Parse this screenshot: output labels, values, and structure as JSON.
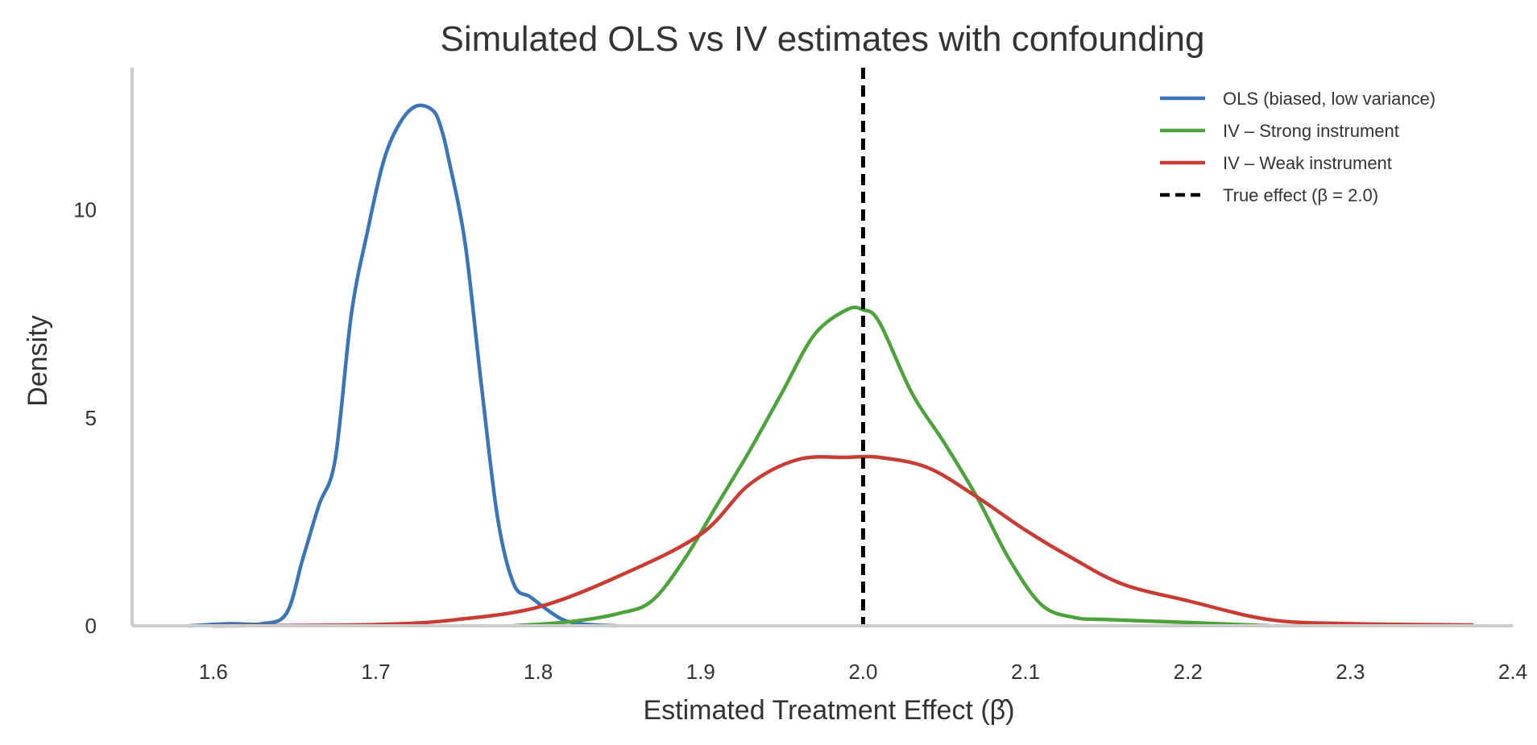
{
  "chart_data": {
    "type": "line",
    "title": "Simulated OLS vs IV estimates with confounding",
    "xlabel": "Estimated Treatment Effect (β̂)",
    "ylabel": "Density",
    "xlim": [
      1.55,
      2.4
    ],
    "ylim": [
      0,
      13.5
    ],
    "x_ticks": [
      1.6,
      1.7,
      1.8,
      1.9,
      2.0,
      2.1,
      2.2,
      2.3,
      2.4
    ],
    "x_tick_labels": [
      "1.6",
      "1.7",
      "1.8",
      "1.9",
      "2.0",
      "2.1",
      "2.2",
      "2.3",
      "2.4"
    ],
    "y_ticks": [
      0,
      5,
      10
    ],
    "y_tick_labels": [
      "0",
      "5",
      "10"
    ],
    "grid": false,
    "legend_position": "top-right",
    "series": [
      {
        "name": "OLS (biased, low variance)",
        "color": "#3a76b7",
        "style": "solid",
        "x": [
          1.585,
          1.61,
          1.63,
          1.645,
          1.655,
          1.665,
          1.675,
          1.685,
          1.695,
          1.705,
          1.715,
          1.725,
          1.735,
          1.74,
          1.745,
          1.755,
          1.765,
          1.775,
          1.785,
          1.795,
          1.805,
          1.815,
          1.825,
          1.835,
          1.848
        ],
        "y": [
          0.0,
          0.05,
          0.05,
          0.3,
          1.6,
          2.9,
          4.0,
          7.5,
          9.5,
          11.2,
          12.1,
          12.5,
          12.4,
          12.0,
          11.2,
          9.2,
          5.8,
          2.6,
          1.0,
          0.7,
          0.4,
          0.15,
          0.05,
          0.02,
          0.0
        ]
      },
      {
        "name": "IV – Strong instrument",
        "color": "#4ea23c",
        "style": "solid",
        "x": [
          1.785,
          1.82,
          1.85,
          1.87,
          1.89,
          1.91,
          1.93,
          1.95,
          1.97,
          1.99,
          2.0,
          2.01,
          2.03,
          2.05,
          2.07,
          2.09,
          2.11,
          2.13,
          2.15,
          2.2,
          2.25
        ],
        "y": [
          0.0,
          0.1,
          0.3,
          0.6,
          1.6,
          2.9,
          4.2,
          5.6,
          7.0,
          7.6,
          7.6,
          7.3,
          5.6,
          4.4,
          3.1,
          1.6,
          0.5,
          0.2,
          0.15,
          0.08,
          0.0
        ]
      },
      {
        "name": "IV – Weak instrument",
        "color": "#c93c34",
        "style": "solid",
        "x": [
          1.6,
          1.7,
          1.75,
          1.8,
          1.85,
          1.9,
          1.93,
          1.96,
          1.99,
          2.01,
          2.04,
          2.07,
          2.1,
          2.13,
          2.16,
          2.2,
          2.25,
          2.3,
          2.375
        ],
        "y": [
          0.0,
          0.03,
          0.15,
          0.45,
          1.2,
          2.2,
          3.4,
          4.0,
          4.05,
          4.05,
          3.8,
          3.1,
          2.3,
          1.6,
          1.0,
          0.6,
          0.15,
          0.05,
          0.02
        ]
      }
    ],
    "reference_line": {
      "name": "True effect (β = 2.0)",
      "x": 2.0,
      "color": "#000000",
      "style": "dashed"
    }
  }
}
